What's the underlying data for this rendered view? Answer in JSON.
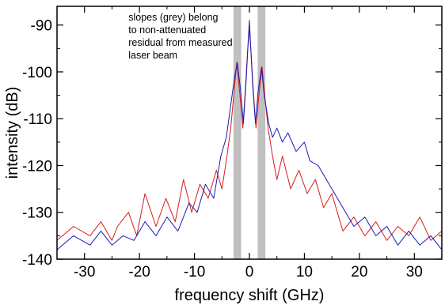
{
  "chart_data": {
    "type": "line",
    "title": "",
    "xlabel": "frequency shift (GHz)",
    "ylabel": "intensity (dB)",
    "xlim": [
      -35,
      35
    ],
    "ylim": [
      -140,
      -86
    ],
    "xticks": [
      -30,
      -20,
      -10,
      0,
      10,
      20,
      30
    ],
    "yticks": [
      -140,
      -130,
      -120,
      -110,
      -100,
      -90
    ],
    "xtick_labels": [
      "-30",
      "-20",
      "-10",
      "0",
      "10",
      "20",
      "30"
    ],
    "ytick_labels": [
      "-140",
      "-130",
      "-120",
      "-110",
      "-100",
      "-90"
    ],
    "grid": false,
    "shaded_bands": [
      {
        "x0": -2.9,
        "x1": -1.5,
        "color": "#c0c0c0"
      },
      {
        "x0": 1.5,
        "x1": 2.9,
        "color": "#c0c0c0"
      }
    ],
    "annotation": {
      "lines": [
        "slopes (grey) belong",
        "to non-attenuated",
        "residual from measured",
        "laser beam"
      ],
      "x": -22,
      "y": -89
    },
    "series": [
      {
        "color": "#d81b1b",
        "x": [
          -35,
          -32,
          -29,
          -27,
          -25,
          -24,
          -22,
          -20.5,
          -19,
          -17,
          -15.2,
          -13.5,
          -12,
          -10.5,
          -9,
          -7.5,
          -6,
          -5,
          -4.2,
          -3.4,
          -2.7,
          -2.3,
          -1.8,
          -1.2,
          -0.7,
          -0.3,
          0,
          0.3,
          0.7,
          1.2,
          1.8,
          2.3,
          2.7,
          3.4,
          4.2,
          5,
          6,
          7.5,
          9,
          10.5,
          12,
          13.5,
          15,
          17,
          19,
          21,
          23,
          25,
          27,
          29,
          31,
          33,
          35
        ],
        "y": [
          -136,
          -133,
          -135,
          -132,
          -136,
          -133,
          -130,
          -135,
          -126,
          -133,
          -127,
          -132,
          -123,
          -130,
          -124,
          -127,
          -121,
          -125,
          -119,
          -112,
          -103,
          -98,
          -104,
          -112,
          -103,
          -95,
          -91,
          -96,
          -104,
          -112,
          -104,
          -99,
          -104,
          -112,
          -118,
          -123,
          -118,
          -125,
          -121,
          -126,
          -123,
          -129,
          -126,
          -134,
          -131,
          -135,
          -132,
          -136,
          -133,
          -135,
          -131,
          -136,
          -134
        ]
      },
      {
        "color": "#1a1ab8",
        "x": [
          -35,
          -32,
          -29,
          -27,
          -25,
          -23,
          -21,
          -19,
          -17,
          -15,
          -13,
          -11,
          -9.5,
          -8,
          -6.5,
          -5.2,
          -4.2,
          -3.5,
          -2.7,
          -2.2,
          -1.6,
          -1.1,
          -0.6,
          -0.2,
          0,
          0.2,
          0.6,
          1.1,
          1.6,
          2.2,
          2.7,
          3.5,
          4.2,
          5,
          6,
          7,
          8.5,
          10,
          11,
          12.5,
          14,
          15.5,
          17,
          19,
          21,
          23,
          25,
          27,
          29,
          31,
          33,
          35
        ],
        "y": [
          -138,
          -135,
          -137,
          -134,
          -137,
          -135,
          -136,
          -132,
          -135,
          -131,
          -134,
          -128,
          -130,
          -124,
          -127,
          -118,
          -114,
          -108,
          -101,
          -98,
          -104,
          -111,
          -102,
          -93,
          -89,
          -94,
          -103,
          -111,
          -104,
          -99,
          -105,
          -111,
          -114,
          -112,
          -115,
          -113,
          -117,
          -115,
          -119,
          -120,
          -123,
          -126,
          -129,
          -133,
          -131,
          -135,
          -133,
          -137,
          -134,
          -137,
          -135,
          -138
        ]
      }
    ]
  }
}
